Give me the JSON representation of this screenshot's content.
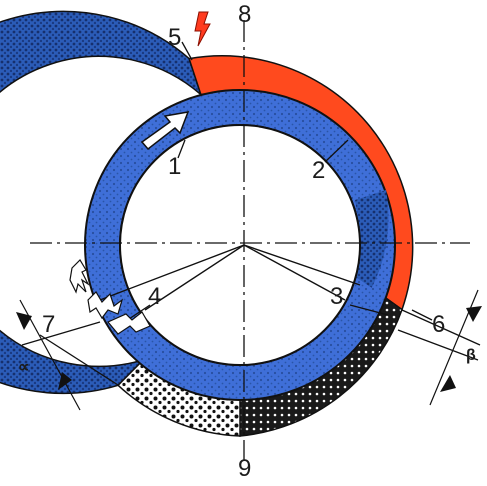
{
  "labels": {
    "l1": "1",
    "l2": "2",
    "l3": "3",
    "l4": "4",
    "l5": "5",
    "l6": "6",
    "l7": "7",
    "l8": "8",
    "l9": "9",
    "alpha": "∝",
    "beta": "β"
  },
  "colors": {
    "blue": "#3f6fd8",
    "dark_blue": "#1e3f8f",
    "red": "#ff4a1e",
    "black": "#1a1a1a",
    "white": "#ffffff"
  },
  "icons": {
    "spark": "lightning-icon",
    "rotation": "rotation-arrow-icon",
    "fire": "fire-icon"
  }
}
